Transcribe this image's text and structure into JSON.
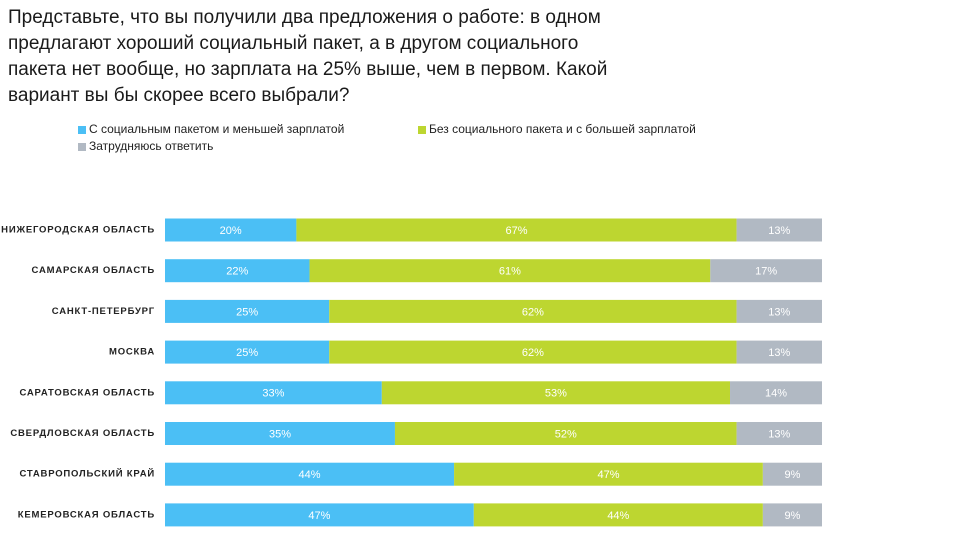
{
  "chart_data": {
    "type": "stacked-bar-horizontal",
    "title": "Представьте, что вы получили два предложения о работе: в одном предлагают хороший социальный пакет, а в другом социального пакета нет вообще, но зарплата на 25% выше, чем в первом. Какой вариант вы бы скорее всего выбрали?",
    "categories": [
      "НИЖЕГОРОДСКАЯ ОБЛАСТЬ",
      "САМАРСКАЯ ОБЛАСТЬ",
      "САНКТ-ПЕТЕРБУРГ",
      "МОСКВА",
      "САРАТОВСКАЯ ОБЛАСТЬ",
      "СВЕРДЛОВСКАЯ ОБЛАСТЬ",
      "СТАВРОПОЛЬСКИЙ КРАЙ",
      "КЕМЕРОВСКАЯ ОБЛАСТЬ"
    ],
    "xlim": [
      0,
      100
    ],
    "series": [
      {
        "name": "С социальным пакетом и меньшей зарплатой",
        "color": "#4bbff5",
        "values": [
          20,
          22,
          25,
          25,
          33,
          35,
          44,
          47
        ],
        "value_labels": [
          "20%",
          "22%",
          "25%",
          "25%",
          "33%",
          "35%",
          "44%",
          "47%"
        ]
      },
      {
        "name": "Без социального пакета и с большей зарплатой",
        "color": "#bdd630",
        "values": [
          67,
          61,
          62,
          62,
          53,
          52,
          47,
          44
        ],
        "value_labels": [
          "67%",
          "61%",
          "62%",
          "62%",
          "53%",
          "52%",
          "47%",
          "44%"
        ]
      },
      {
        "name": "Затрудняюсь ответить",
        "color": "#b1b9c3",
        "values": [
          13,
          17,
          13,
          13,
          14,
          13,
          9,
          9
        ],
        "value_labels": [
          "13%",
          "17%",
          "13%",
          "13%",
          "14%",
          "13%",
          "9%",
          "9%"
        ]
      }
    ]
  }
}
